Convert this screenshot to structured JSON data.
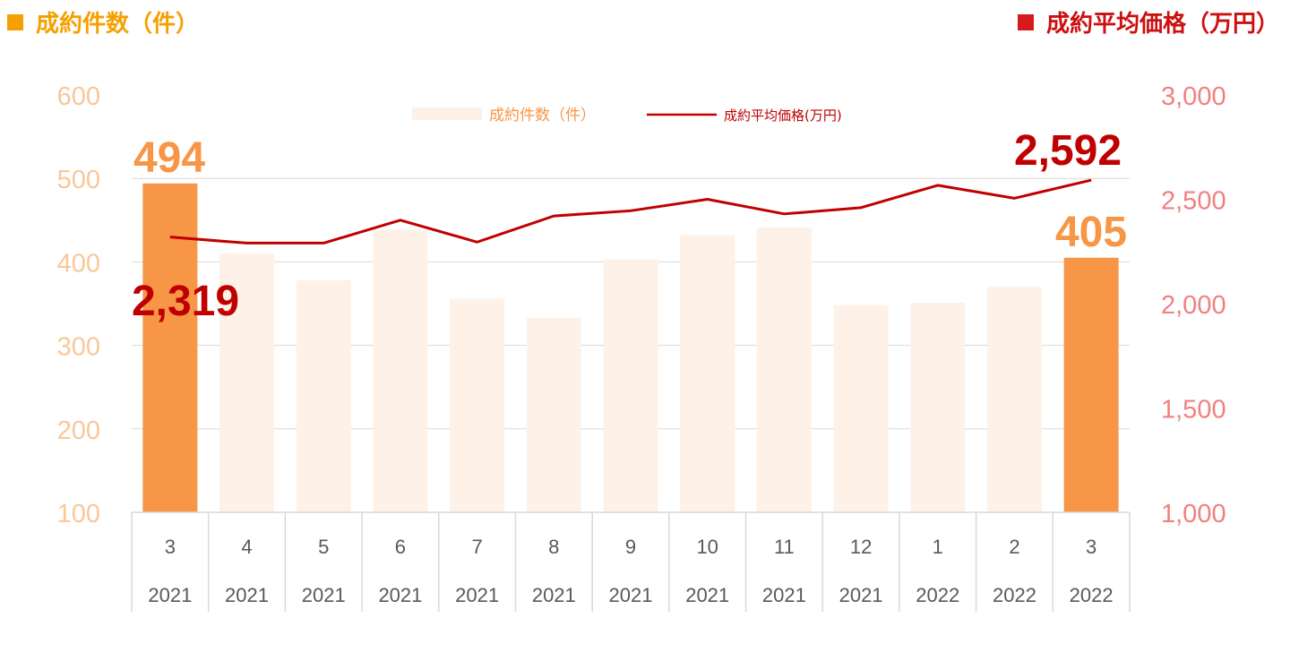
{
  "header": {
    "left_title": "成約件数（件）",
    "right_title": "成約平均価格（万円）"
  },
  "colors": {
    "bar_highlight": "#f79646",
    "bar_normal": "#fdf1e8",
    "line": "#c00000",
    "left_axis": "#f9c79a",
    "right_axis": "#f08080",
    "header_left": "#f5a000",
    "header_right": "#cc1010",
    "grid": "#d9d9d9"
  },
  "chart_data": {
    "type": "bar+line",
    "categories": [
      {
        "month": "3",
        "year": "2021"
      },
      {
        "month": "4",
        "year": "2021"
      },
      {
        "month": "5",
        "year": "2021"
      },
      {
        "month": "6",
        "year": "2021"
      },
      {
        "month": "7",
        "year": "2021"
      },
      {
        "month": "8",
        "year": "2021"
      },
      {
        "month": "9",
        "year": "2021"
      },
      {
        "month": "10",
        "year": "2021"
      },
      {
        "month": "11",
        "year": "2021"
      },
      {
        "month": "12",
        "year": "2021"
      },
      {
        "month": "1",
        "year": "2022"
      },
      {
        "month": "2",
        "year": "2022"
      },
      {
        "month": "3",
        "year": "2022"
      }
    ],
    "series": [
      {
        "name": "成約件数（件）",
        "type": "bar",
        "axis": "left",
        "values": [
          494,
          410,
          378,
          439,
          356,
          333,
          403,
          432,
          441,
          348,
          351,
          370,
          405
        ],
        "highlight": [
          true,
          false,
          false,
          false,
          false,
          false,
          false,
          false,
          false,
          false,
          false,
          false,
          true
        ]
      },
      {
        "name": "成約平均価格(万円)",
        "type": "line",
        "axis": "right",
        "values": [
          2319,
          2290,
          2290,
          2400,
          2295,
          2420,
          2445,
          2500,
          2430,
          2460,
          2567,
          2505,
          2592
        ]
      }
    ],
    "left_axis": {
      "min": 100,
      "max": 600,
      "ticks": [
        "100",
        "200",
        "300",
        "400",
        "500",
        "600"
      ]
    },
    "right_axis": {
      "min": 1000,
      "max": 3000,
      "ticks": [
        "1,000",
        "1,500",
        "2,000",
        "2,500",
        "3,000"
      ]
    },
    "annotations": {
      "bar_first": "494",
      "bar_last": "405",
      "line_first": "2,319",
      "line_last": "2,592"
    },
    "legend": {
      "position": "top-center",
      "bar_label": "成約件数（件）",
      "line_label": "成約平均価格(万円)"
    },
    "grid": true
  }
}
